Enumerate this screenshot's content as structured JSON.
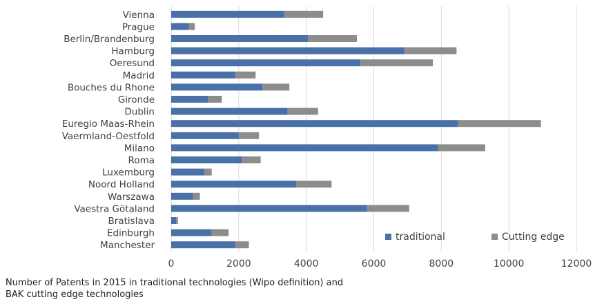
{
  "chart_data": {
    "type": "bar",
    "orientation": "horizontal",
    "stacked": true,
    "categories": [
      "Vienna",
      "Prague",
      "Berlin/Brandenburg",
      "Hamburg",
      "Oeresund",
      "Madrid",
      "Bouches du Rhone",
      "Gironde",
      "Dublin",
      "Euregio Maas-Rhein",
      "Vaermland-Oestfold",
      "Milano",
      "Roma",
      "Luxemburg",
      "Noord Holland",
      "Warszawa",
      "Vaestra Götaland",
      "Bratislava",
      "Edinburgh",
      "Manchester"
    ],
    "series": [
      {
        "name": "traditional",
        "color": "#4a70a8",
        "values": [
          3350,
          520,
          4050,
          6900,
          5600,
          1900,
          2700,
          1100,
          3450,
          8500,
          2000,
          7900,
          2100,
          980,
          3700,
          650,
          5800,
          150,
          1200,
          1900
        ]
      },
      {
        "name": "Cutting edge",
        "color": "#8c8c8c",
        "values": [
          1150,
          180,
          1450,
          1550,
          2150,
          600,
          800,
          400,
          900,
          2450,
          600,
          1400,
          550,
          220,
          1050,
          200,
          1250,
          50,
          500,
          400
        ]
      }
    ],
    "xlim": [
      0,
      12000
    ],
    "xticks": [
      "0",
      "2000",
      "4000",
      "6000",
      "8000",
      "10000",
      "12000"
    ],
    "grid": true,
    "legend_position": "bottom-right, inside plot"
  },
  "caption": {
    "line1": "Number of Patents in 2015 in traditional technologies (Wipo definition) and",
    "line2": "BAK cutting edge technologies"
  }
}
